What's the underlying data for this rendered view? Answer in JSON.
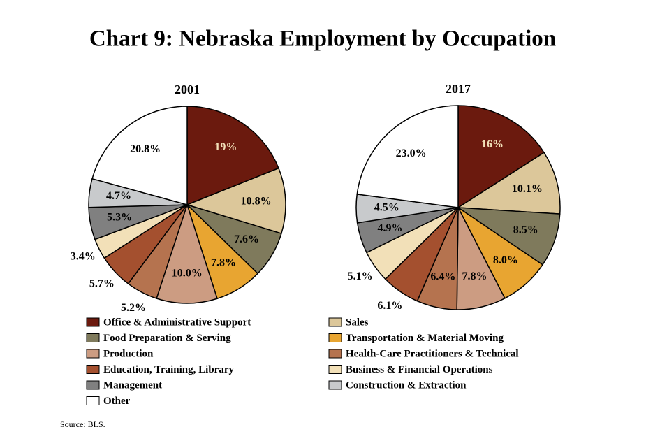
{
  "title": "Chart 9: Nebraska Employment by Occupation",
  "source": "Source: BLS.",
  "chart_data": [
    {
      "type": "pie",
      "title": "2001",
      "categories": [
        "Office & Administrative Support",
        "Sales",
        "Food Preparation & Serving",
        "Transportation & Material Moving",
        "Production",
        "Health-Care Practitioners & Technical",
        "Education, Training, Library",
        "Business & Financial Operations",
        "Management",
        "Construction & Extraction",
        "Other"
      ],
      "colors": [
        "#6b1a0e",
        "#dcc79a",
        "#7f7a5c",
        "#e8a531",
        "#cc9c82",
        "#b5734f",
        "#a4502f",
        "#f2e0b8",
        "#808080",
        "#c8cacc",
        "#ffffff"
      ],
      "values": [
        19,
        10.8,
        7.6,
        7.8,
        10.0,
        5.2,
        5.7,
        3.4,
        5.3,
        4.7,
        20.8
      ],
      "value_labels": [
        "19%",
        "10.8%",
        "7.6%",
        "7.8%",
        "10.0%",
        "5.2%",
        "5.7%",
        "3.4%",
        "5.3%",
        "4.7%",
        "20.8%"
      ]
    },
    {
      "type": "pie",
      "title": "2017",
      "values": [
        16,
        10.1,
        8.5,
        8.0,
        7.8,
        6.4,
        6.1,
        5.1,
        4.9,
        4.5,
        23.0
      ],
      "value_labels": [
        "16%",
        "10.1%",
        "8.5%",
        "8.0%",
        "7.8%",
        "6.4%",
        "6.1%",
        "5.1%",
        "4.9%",
        "4.5%",
        "23.0%"
      ]
    }
  ]
}
